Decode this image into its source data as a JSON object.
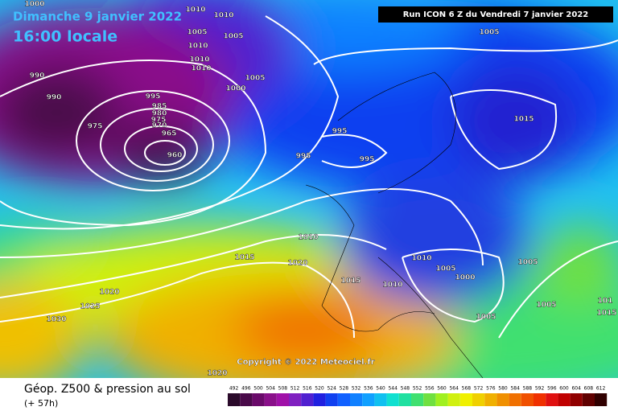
{
  "header": {
    "date": "Dimanche 9 janvier 2022",
    "time": "16:00 locale",
    "run": "Run ICON 6 Z du Vendredi 7 janvier 2022",
    "copyright": "Copyright © 2022 Meteociel.fr"
  },
  "footer": {
    "title": "Géop. Z500 & pression au sol",
    "lead": "(+ 57h)"
  },
  "isobar_labels": [
    1000,
    1010,
    1010,
    1005,
    1005,
    1010,
    1010,
    1010,
    1005,
    1000,
    990,
    990,
    995,
    985,
    980,
    975,
    970,
    975,
    965,
    960,
    995,
    995,
    995,
    1005,
    1015,
    1010,
    1015,
    1020,
    1015,
    1010,
    1010,
    1005,
    1000,
    1005,
    1005,
    1005,
    1020,
    1025,
    1030,
    1020,
    101,
    1015
  ],
  "scale": {
    "labels": [
      492,
      496,
      500,
      504,
      508,
      512,
      516,
      520,
      524,
      528,
      532,
      536,
      540,
      544,
      548,
      552,
      556,
      560,
      564,
      568,
      572,
      576,
      580,
      584,
      588,
      592,
      596,
      600,
      604,
      608,
      612
    ],
    "colors": [
      "#2a0a2a",
      "#4a0a4a",
      "#6a0a6a",
      "#8a108a",
      "#a010a8",
      "#8020c0",
      "#5020d0",
      "#2020e0",
      "#1040f0",
      "#1060ff",
      "#1080ff",
      "#10a0ff",
      "#10c0f0",
      "#10e0d0",
      "#20e0a0",
      "#40e070",
      "#70e040",
      "#a0f020",
      "#d0f010",
      "#f0f000",
      "#f0d000",
      "#f0b000",
      "#f09000",
      "#f07000",
      "#f05000",
      "#f03000",
      "#e01010",
      "#c00000",
      "#900000",
      "#600000",
      "#300000"
    ]
  }
}
